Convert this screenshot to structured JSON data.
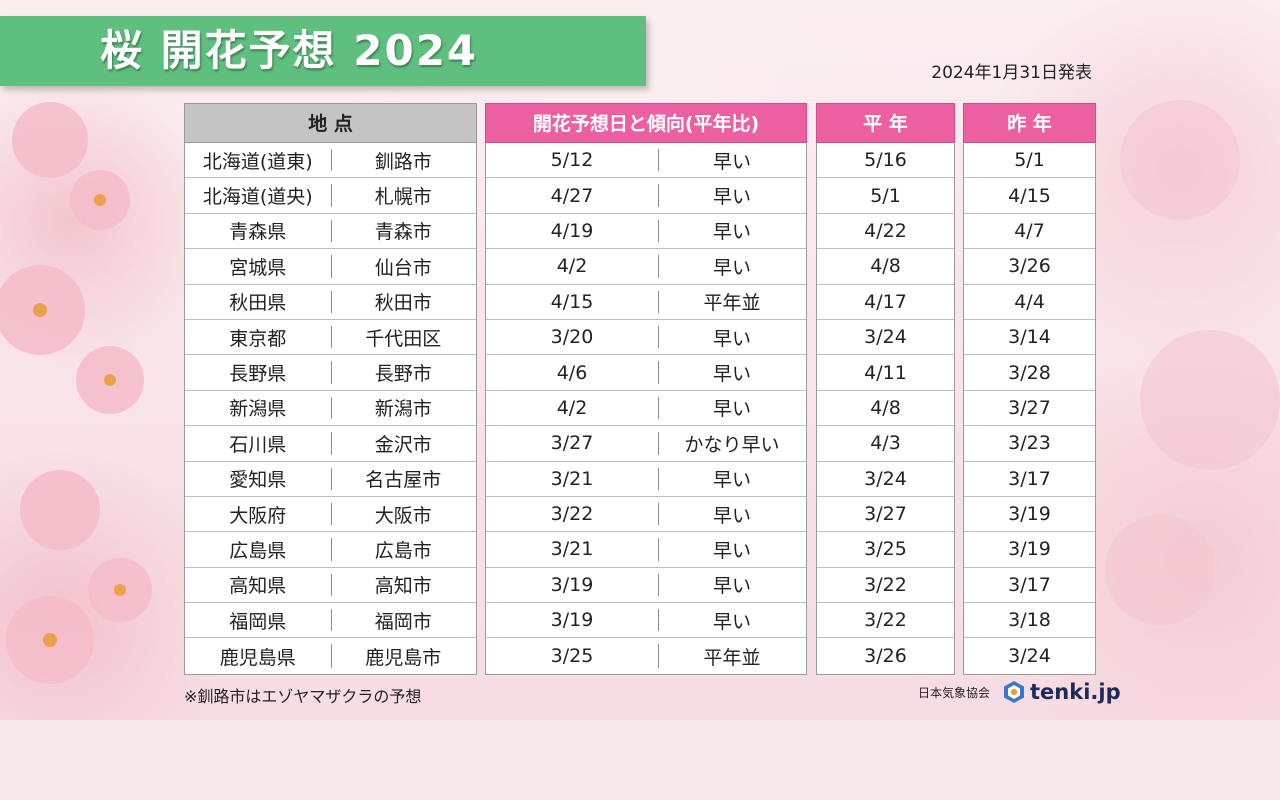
{
  "title": "桜 開花予想 2024",
  "published": "2024年1月31日発表",
  "headers": {
    "location": "地 点",
    "forecast": "開花予想日と傾向(平年比)",
    "normal": "平 年",
    "last_year": "昨 年"
  },
  "rows": [
    {
      "region": "北海道(道東)",
      "city": "釧路市",
      "forecast": "5/12",
      "trend": "早い",
      "normal": "5/16",
      "last_year": "5/1"
    },
    {
      "region": "北海道(道央)",
      "city": "札幌市",
      "forecast": "4/27",
      "trend": "早い",
      "normal": "5/1",
      "last_year": "4/15"
    },
    {
      "region": "青森県",
      "city": "青森市",
      "forecast": "4/19",
      "trend": "早い",
      "normal": "4/22",
      "last_year": "4/7"
    },
    {
      "region": "宮城県",
      "city": "仙台市",
      "forecast": "4/2",
      "trend": "早い",
      "normal": "4/8",
      "last_year": "3/26"
    },
    {
      "region": "秋田県",
      "city": "秋田市",
      "forecast": "4/15",
      "trend": "平年並",
      "normal": "4/17",
      "last_year": "4/4"
    },
    {
      "region": "東京都",
      "city": "千代田区",
      "forecast": "3/20",
      "trend": "早い",
      "normal": "3/24",
      "last_year": "3/14"
    },
    {
      "region": "長野県",
      "city": "長野市",
      "forecast": "4/6",
      "trend": "早い",
      "normal": "4/11",
      "last_year": "3/28"
    },
    {
      "region": "新潟県",
      "city": "新潟市",
      "forecast": "4/2",
      "trend": "早い",
      "normal": "4/8",
      "last_year": "3/27"
    },
    {
      "region": "石川県",
      "city": "金沢市",
      "forecast": "3/27",
      "trend": "かなり早い",
      "normal": "4/3",
      "last_year": "3/23"
    },
    {
      "region": "愛知県",
      "city": "名古屋市",
      "forecast": "3/21",
      "trend": "早い",
      "normal": "3/24",
      "last_year": "3/17"
    },
    {
      "region": "大阪府",
      "city": "大阪市",
      "forecast": "3/22",
      "trend": "早い",
      "normal": "3/27",
      "last_year": "3/19"
    },
    {
      "region": "広島県",
      "city": "広島市",
      "forecast": "3/21",
      "trend": "早い",
      "normal": "3/25",
      "last_year": "3/19"
    },
    {
      "region": "高知県",
      "city": "高知市",
      "forecast": "3/19",
      "trend": "早い",
      "normal": "3/22",
      "last_year": "3/17"
    },
    {
      "region": "福岡県",
      "city": "福岡市",
      "forecast": "3/19",
      "trend": "早い",
      "normal": "3/22",
      "last_year": "3/18"
    },
    {
      "region": "鹿児島県",
      "city": "鹿児島市",
      "forecast": "3/25",
      "trend": "平年並",
      "normal": "3/26",
      "last_year": "3/24"
    }
  ],
  "footnote": "※釧路市はエゾヤマザクラの予想",
  "brand": {
    "association": "日本気象協会",
    "name": "tenki.jp",
    "logo_icon": "tenki-logo-icon"
  },
  "colors": {
    "title_banner": "#5fbf7e",
    "pink_header": "#ec5fa0",
    "gray_header": "#c4c4c4"
  }
}
